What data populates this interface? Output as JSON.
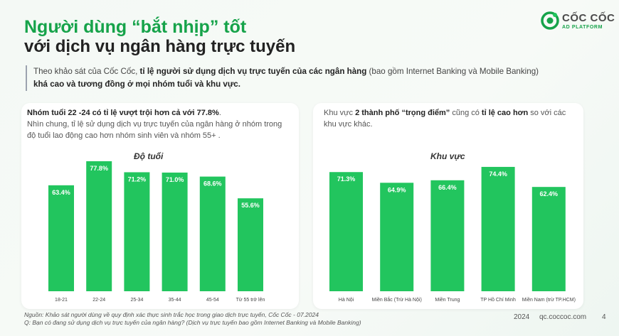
{
  "header": {
    "title_line1": "Người dùng “bắt nhịp” tốt",
    "title_line2": "với dịch vụ ngân hàng trực tuyến"
  },
  "logo": {
    "brand": "CỐC CỐC",
    "sub": "AD PLATFORM"
  },
  "intro": {
    "part1": "Theo khảo sát của Cốc Cốc, ",
    "bold1": "tỉ lệ người sử dụng dịch vụ trực tuyến của các ngân hàng",
    "part2": " (bao gồm Internet Banking và Mobile Banking)",
    "bold2": "khá cao và tương đồng ở mọi nhóm tuổi và khu vực."
  },
  "left_card": {
    "bold": "Nhóm tuổi 22 -24 có tỉ lệ vượt trội hơn cả với 77.8%",
    "dot": ".",
    "body": "Nhìn chung, tỉ lệ sử dụng dịch vụ trực tuyến của ngân hàng ở nhóm trong độ tuổi lao động cao hơn nhóm sinh viên và nhóm 55+ ."
  },
  "right_card": {
    "p1": "Khu vực ",
    "bold1": "2 thành phố “trọng điểm”",
    "p2": " cũng có ",
    "bold2": "tỉ lệ cao hơn",
    "p3": " so với các khu vực khác."
  },
  "chart_data": [
    {
      "type": "bar",
      "title": "Độ tuổi",
      "categories": [
        "18-21",
        "22-24",
        "25-34",
        "35-44",
        "45-54",
        "Từ 55 trở lên"
      ],
      "values": [
        63.4,
        77.8,
        71.2,
        71.0,
        68.6,
        55.6
      ],
      "labels": [
        "63.4%",
        "77.8%",
        "71.2%",
        "71.0%",
        "68.6%",
        "55.6%"
      ],
      "unit": "%",
      "ylim": [
        0,
        85
      ],
      "color": "#22c55e"
    },
    {
      "type": "bar",
      "title": "Khu vực",
      "categories": [
        "Hà Nội",
        "Miền Bắc (Trừ Hà Nội)",
        "Miền Trung",
        "TP Hồ Chí Minh",
        "Miền Nam (trừ TP.HCM)"
      ],
      "values": [
        71.3,
        64.9,
        66.4,
        74.4,
        62.4
      ],
      "labels": [
        "71.3%",
        "64.9%",
        "66.4%",
        "74.4%",
        "62.4%"
      ],
      "unit": "%",
      "ylim": [
        0,
        85
      ],
      "color": "#22c55e"
    }
  ],
  "footer": {
    "source": "Nguồn: Khảo sát người dùng về quy định xác thực sinh trắc học trong giao dịch trực tuyến, Cốc Cốc - 07.2024",
    "question": "Q: Bạn có đang sử dụng dịch vụ trực tuyến của ngân hàng? (Dịch vụ trực tuyến bao gồm Internet Banking và Mobile Banking)",
    "year": "2024",
    "site": "qc.coccoc.com",
    "page": "4"
  }
}
